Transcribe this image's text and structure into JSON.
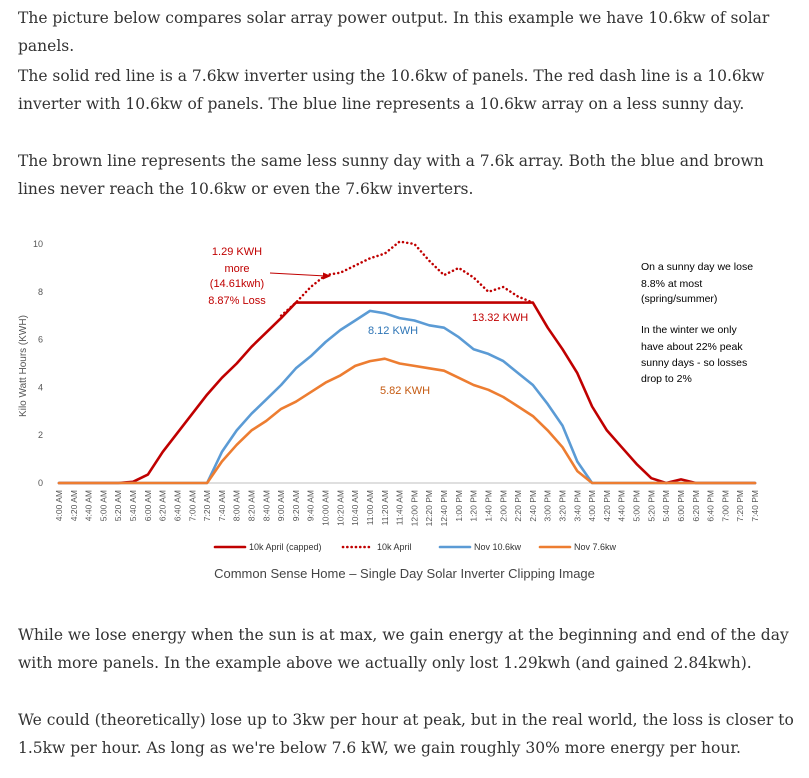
{
  "article": {
    "p1": "The picture below compares solar array power output. In this example we have 10.6kw of solar panels.",
    "p2": "The solid red line is a 7.6kw inverter using the 10.6kw of panels. The red dash line is a 10.6kw inverter with 10.6kw of panels. The blue line represents a 10.6kw array on a less sunny day.",
    "p3": "The brown line represents the same less sunny day with a 7.6k array. Both the blue and brown lines never reach the 10.6kw or even the 7.6kw inverters.",
    "caption": "Common Sense Home – Single Day Solar Inverter Clipping Image",
    "p4": "While we lose energy when the sun is at max, we gain energy at the beginning and end of the day with more panels. In the example above we actually only lost 1.29kwh (and gained 2.84kwh).",
    "p5": "We could (theoretically) lose up to 3kw per hour at peak, but in the real world, the loss is closer to 1.5kw per hour. As long as we're below 7.6 kW, we gain roughly 30% more energy per hour."
  },
  "chart_data": {
    "type": "line",
    "title": "",
    "xlabel": "",
    "ylabel": "Kilo Watt Hours (KWH)",
    "ylim": [
      0,
      10
    ],
    "yticks": [
      0,
      2,
      4,
      6,
      8,
      10
    ],
    "grid": false,
    "legend_position": "bottom",
    "categories": [
      "4:00 AM",
      "4:20 AM",
      "4:40 AM",
      "5:00 AM",
      "5:20 AM",
      "5:40 AM",
      "6:00 AM",
      "6:20 AM",
      "6:40 AM",
      "7:00 AM",
      "7:20 AM",
      "7:40 AM",
      "8:00 AM",
      "8:20 AM",
      "8:40 AM",
      "9:00 AM",
      "9:20 AM",
      "9:40 AM",
      "10:00 AM",
      "10:20 AM",
      "10:40 AM",
      "11:00 AM",
      "11:20 AM",
      "11:40 AM",
      "12:00 PM",
      "12:20 PM",
      "12:40 PM",
      "1:00 PM",
      "1:20 PM",
      "1:40 PM",
      "2:00 PM",
      "2:20 PM",
      "2:40 PM",
      "3:00 PM",
      "3:20 PM",
      "3:40 PM",
      "4:00 PM",
      "4:20 PM",
      "4:40 PM",
      "5:00 PM",
      "5:20 PM",
      "5:40 PM",
      "6:00 PM",
      "6:20 PM",
      "6:40 PM",
      "7:00 PM",
      "7:20 PM",
      "7:40 PM"
    ],
    "series": [
      {
        "name": "10k April (capped)",
        "color": "#c00000",
        "style": "solid",
        "values": [
          0,
          0,
          0,
          0,
          0,
          0.05,
          0.35,
          1.3,
          2.1,
          2.9,
          3.7,
          4.4,
          5.0,
          5.7,
          6.3,
          6.9,
          7.55,
          7.55,
          7.55,
          7.55,
          7.55,
          7.55,
          7.55,
          7.55,
          7.55,
          7.55,
          7.55,
          7.55,
          7.55,
          7.55,
          7.55,
          7.55,
          7.55,
          6.5,
          5.6,
          4.6,
          3.2,
          2.2,
          1.5,
          0.8,
          0.2,
          0,
          0.15,
          0,
          0,
          0,
          0,
          0
        ]
      },
      {
        "name": "10k April",
        "color": "#c00000",
        "style": "dotted",
        "values": [
          null,
          null,
          null,
          null,
          null,
          null,
          null,
          null,
          null,
          null,
          null,
          null,
          null,
          null,
          null,
          7.0,
          7.55,
          8.2,
          8.7,
          8.8,
          9.1,
          9.4,
          9.6,
          10.1,
          10.0,
          9.3,
          8.7,
          9.0,
          8.6,
          8.0,
          8.2,
          7.8,
          7.55,
          null,
          null,
          null,
          null,
          null,
          null,
          null,
          null,
          null,
          null,
          null,
          null,
          null,
          null,
          null
        ]
      },
      {
        "name": "Nov 10.6kw",
        "color": "#5b9bd5",
        "style": "solid",
        "values": [
          0,
          0,
          0,
          0,
          0,
          0,
          0,
          0,
          0,
          0,
          0,
          1.3,
          2.2,
          2.9,
          3.5,
          4.1,
          4.8,
          5.3,
          5.9,
          6.4,
          6.8,
          7.2,
          7.1,
          6.9,
          6.8,
          6.6,
          6.5,
          6.1,
          5.6,
          5.4,
          5.1,
          4.6,
          4.1,
          3.3,
          2.4,
          0.9,
          0,
          0,
          0,
          0,
          0,
          0,
          0,
          0,
          0,
          0,
          0,
          0
        ]
      },
      {
        "name": "Nov 7.6kw",
        "color": "#ed7d31",
        "style": "solid",
        "values": [
          0,
          0,
          0,
          0,
          0,
          0,
          0,
          0,
          0,
          0,
          0,
          0.9,
          1.6,
          2.2,
          2.6,
          3.1,
          3.4,
          3.8,
          4.2,
          4.5,
          4.9,
          5.1,
          5.2,
          5.0,
          4.9,
          4.8,
          4.7,
          4.4,
          4.1,
          3.9,
          3.6,
          3.2,
          2.8,
          2.2,
          1.5,
          0.5,
          0,
          0,
          0,
          0,
          0,
          0,
          0,
          0,
          0,
          0,
          0,
          0
        ]
      }
    ],
    "annotations": {
      "loss_title": "1.29 KWH",
      "loss_l2": "more",
      "loss_l3": "(14.61kwh)",
      "loss_l4": "8.87% Loss",
      "capped_total": "13.32 KWH",
      "nov10_total": "8.12 KWH",
      "nov76_total": "5.82 KWH",
      "note1_l1": "On a sunny day we lose",
      "note1_l2": "8.8% at most",
      "note1_l3": "(spring/summer)",
      "note2_l1": "In the winter we only",
      "note2_l2": "have about 22% peak",
      "note2_l3": "sunny days - so losses",
      "note2_l4": "drop to 2%"
    }
  }
}
